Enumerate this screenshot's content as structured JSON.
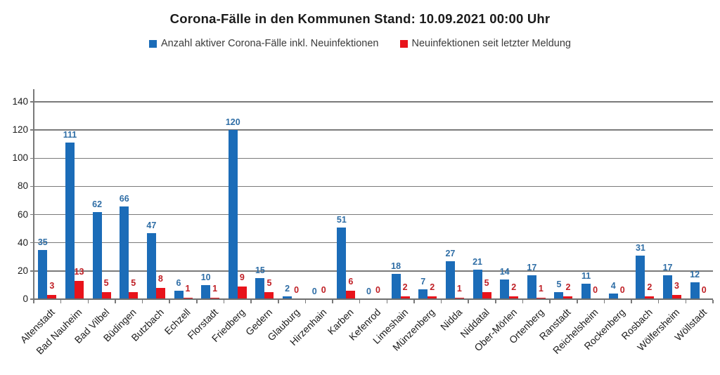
{
  "chart_data": {
    "type": "bar",
    "title": "Corona-Fälle in den Kommunen Stand: 10.09.2021 00:00 Uhr",
    "categories": [
      "Altenstadt",
      "Bad Nauheim",
      "Bad Vilbel",
      "Büdingen",
      "Butzbach",
      "Echzell",
      "Florstadt",
      "Friedberg",
      "Gedern",
      "Glauburg",
      "Hirzenhain",
      "Karben",
      "Kefenrod",
      "Limeshain",
      "Münzenberg",
      "Nidda",
      "Niddatal",
      "Ober-Mörlen",
      "Ortenberg",
      "Ranstadt",
      "Reichelsheim",
      "Rockenberg",
      "Rosbach",
      "Wölfersheim",
      "Wöllstadt"
    ],
    "series": [
      {
        "name": "Anzahl aktiver Corona-Fälle inkl. Neuinfektionen",
        "color": "#1b6cb8",
        "label_color": "#2e6da5",
        "values": [
          35,
          111,
          62,
          66,
          47,
          6,
          10,
          120,
          15,
          2,
          0,
          51,
          0,
          18,
          7,
          27,
          21,
          14,
          17,
          5,
          11,
          4,
          31,
          17,
          12
        ]
      },
      {
        "name": "Neuinfektionen seit letzter Meldung",
        "color": "#e8131b",
        "label_color": "#bf1e24",
        "values": [
          3,
          13,
          5,
          5,
          8,
          1,
          1,
          9,
          5,
          0,
          0,
          6,
          0,
          2,
          2,
          1,
          5,
          2,
          1,
          2,
          0,
          0,
          2,
          3,
          0
        ]
      }
    ],
    "ylim": [
      0,
      140
    ],
    "yticks": [
      0,
      20,
      40,
      60,
      80,
      100,
      120,
      140
    ],
    "grid": true,
    "legend_position": "top",
    "axis_color": "#7a7a7a",
    "text_color": "#1c1c1c"
  }
}
